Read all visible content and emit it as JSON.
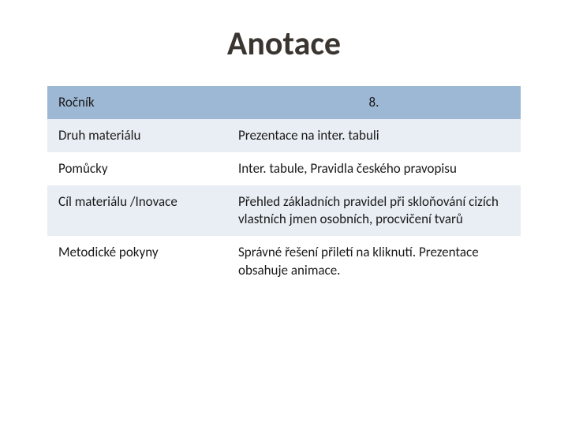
{
  "title": "Anotace",
  "table": {
    "header": {
      "label": "Ročník",
      "value": "8."
    },
    "rows": [
      {
        "label": "Druh materiálu",
        "value": "Prezentace na inter. tabuli",
        "shade": "light"
      },
      {
        "label": "Pomůcky",
        "value": "Inter. tabule,  Pravidla českého pravopisu",
        "shade": "white"
      },
      {
        "label": "Cíl materiálu /Inovace",
        "value": "Přehled základních pravidel při skloňování cizích vlastních jmen osobních, procvičení tvarů",
        "shade": "light"
      },
      {
        "label": "Metodické pokyny",
        "value": "Správné řešení  přiletí na kliknutí. Prezentace obsahuje animace.",
        "shade": "white"
      }
    ]
  },
  "colors": {
    "header_bg": "#9db8d4",
    "light_bg": "#e9eef4",
    "white_bg": "#ffffff",
    "title_color": "#3a3530",
    "text_color": "#1a1a1a"
  },
  "typography": {
    "title_fontsize": 42,
    "cell_fontsize": 17,
    "font_family": "Calibri"
  },
  "layout": {
    "slide_width": 720,
    "slide_height": 540,
    "label_col_pct": 38,
    "value_col_pct": 62
  }
}
